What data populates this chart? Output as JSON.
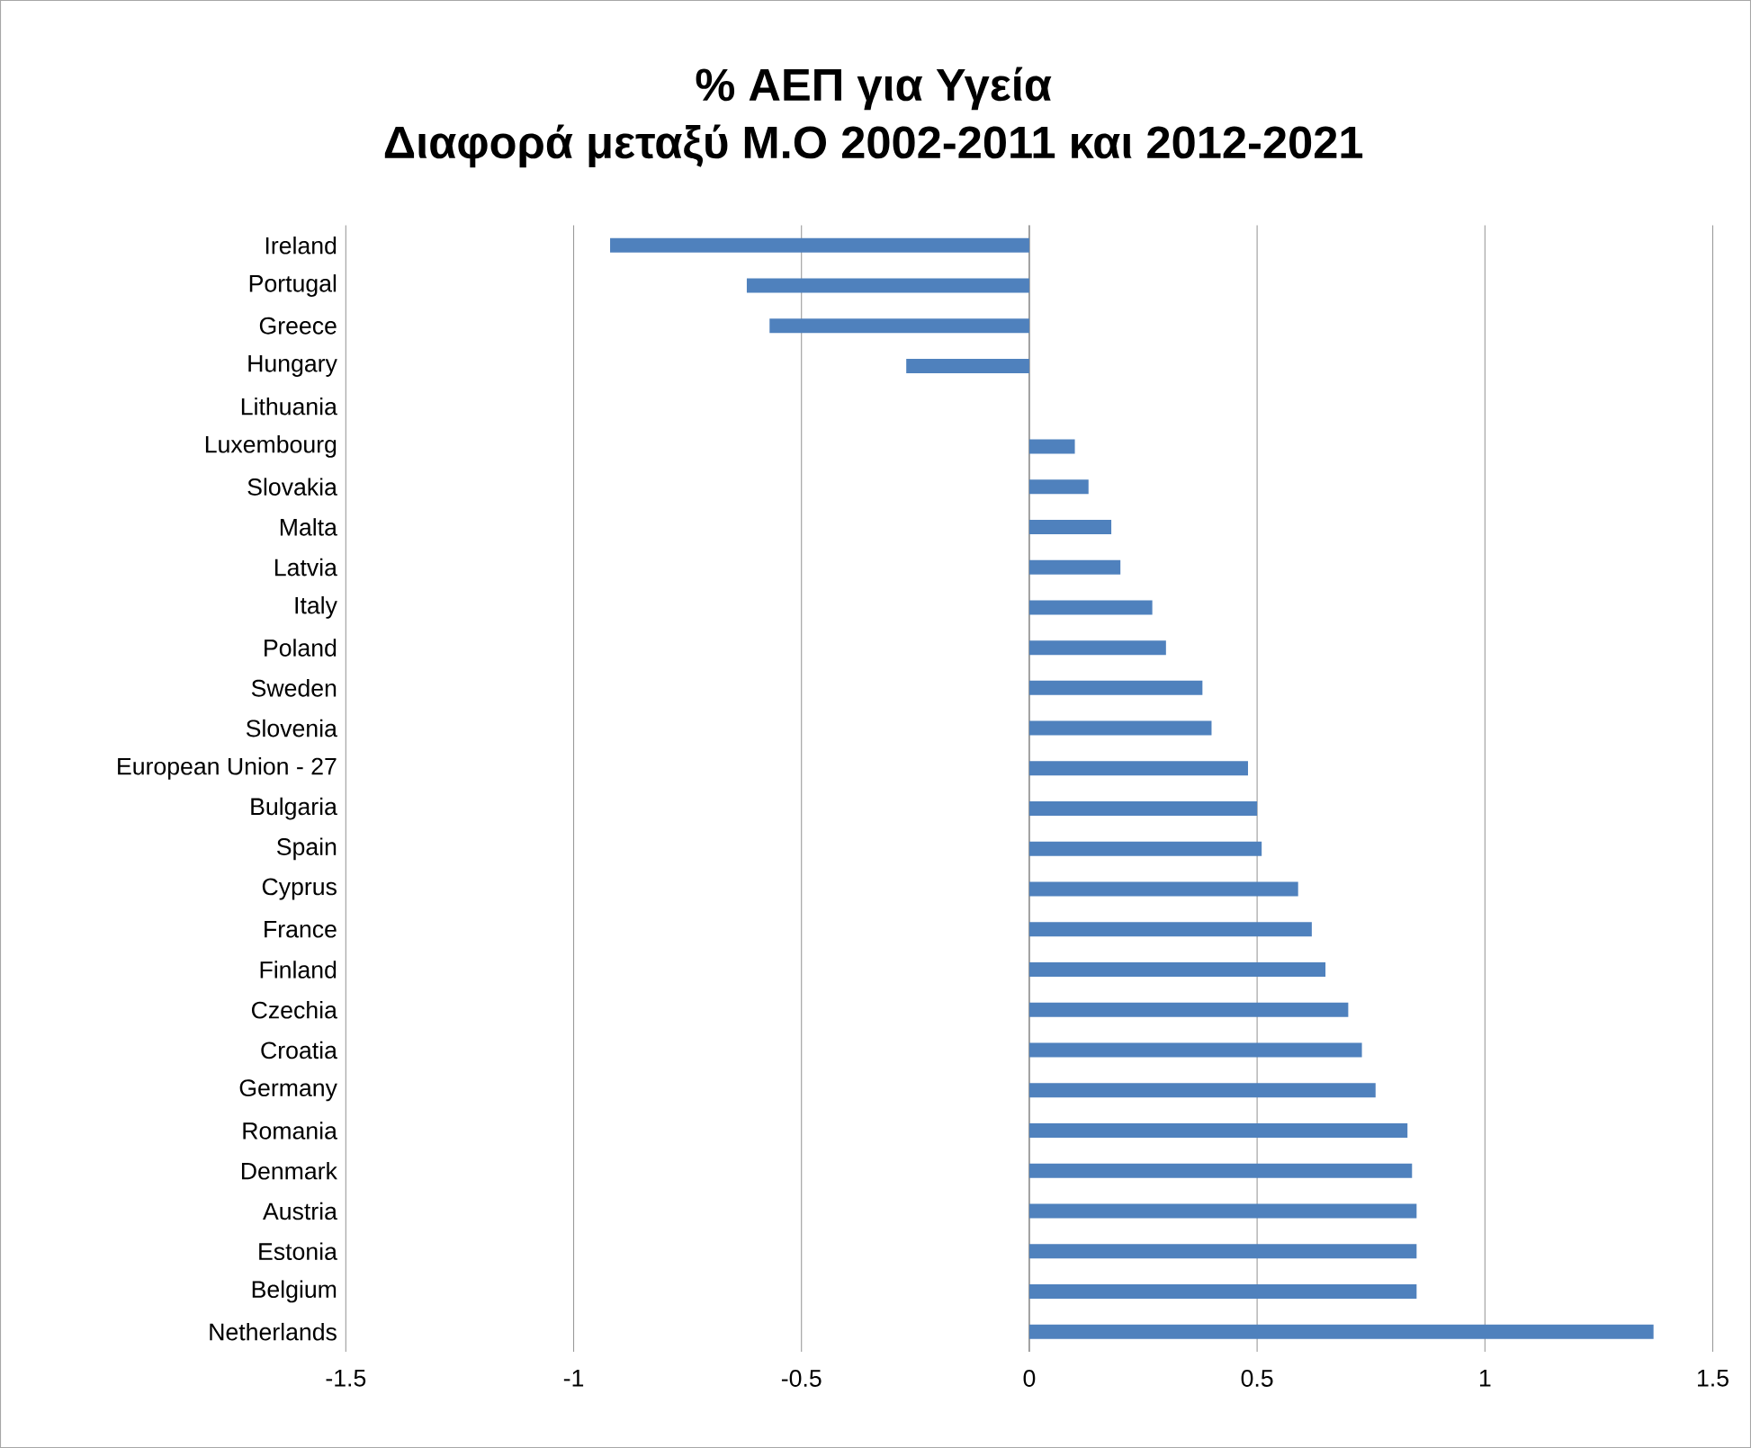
{
  "chart_data": {
    "type": "bar",
    "orientation": "horizontal",
    "title": "% ΑΕΠ για Υγεία",
    "subtitle": "Διαφορά μεταξύ Μ.Ο 2002-2011 και 2012-2021",
    "categories": [
      "Ireland",
      "Portugal",
      "Greece",
      "Hungary",
      "Lithuania",
      "Luxembourg",
      "Slovakia",
      "Malta",
      "Latvia",
      "Italy",
      "Poland",
      "Sweden",
      "Slovenia",
      "European Union - 27",
      "Bulgaria",
      "Spain",
      "Cyprus",
      "France",
      "Finland",
      "Czechia",
      "Croatia",
      "Germany",
      "Romania",
      "Denmark",
      "Austria",
      "Estonia",
      "Belgium",
      "Netherlands"
    ],
    "values": [
      -0.92,
      -0.62,
      -0.57,
      -0.27,
      0,
      0.1,
      0.13,
      0.18,
      0.2,
      0.27,
      0.3,
      0.38,
      0.4,
      0.48,
      0.5,
      0.51,
      0.59,
      0.62,
      0.65,
      0.7,
      0.73,
      0.76,
      0.83,
      0.84,
      0.85,
      0.85,
      0.85,
      1.37
    ],
    "color": "#4f81bd",
    "xlim": [
      -1.5,
      1.5
    ],
    "xticks": [
      -1.5,
      -1,
      -0.5,
      0,
      0.5,
      1,
      1.5
    ],
    "grid": "x"
  }
}
